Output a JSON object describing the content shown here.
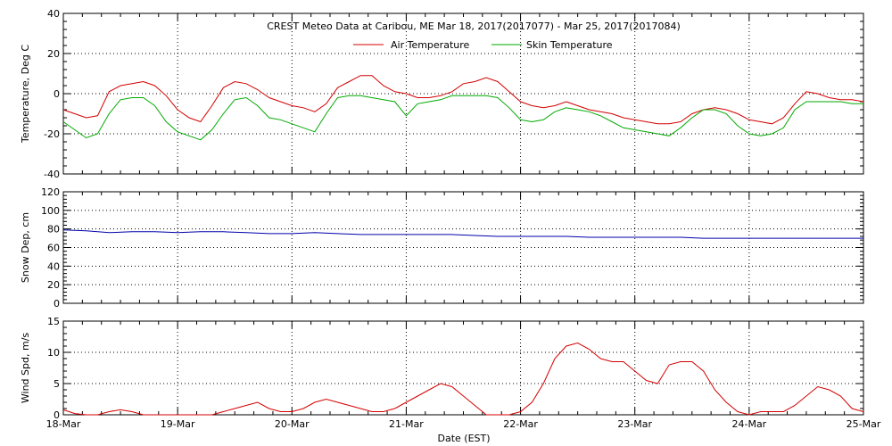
{
  "chart_data": {
    "title": "CREST Meteo Data at Caribou, ME   Mar 18, 2017(2017077) - Mar 25, 2017(2017084)",
    "xlabel": "Date (EST)",
    "x_ticks": [
      "18-Mar",
      "19-Mar",
      "20-Mar",
      "21-Mar",
      "22-Mar",
      "23-Mar",
      "24-Mar",
      "25-Mar"
    ],
    "xlim": [
      0,
      7
    ],
    "x_units": "days since 18-Mar",
    "panels": [
      {
        "type": "line",
        "ylabel": "Temperature, Deg C",
        "ylim": [
          -40,
          40
        ],
        "yticks": [
          -40,
          -20,
          0,
          20,
          40
        ],
        "legend": "top-center",
        "series": [
          {
            "name": "Air Temperature",
            "color": "#d40000",
            "x": [
              0,
              0.1,
              0.2,
              0.3,
              0.4,
              0.5,
              0.6,
              0.7,
              0.8,
              0.9,
              1.0,
              1.1,
              1.2,
              1.3,
              1.4,
              1.5,
              1.6,
              1.7,
              1.8,
              1.9,
              2.0,
              2.1,
              2.2,
              2.3,
              2.4,
              2.5,
              2.6,
              2.7,
              2.8,
              2.9,
              3.0,
              3.1,
              3.2,
              3.3,
              3.4,
              3.5,
              3.6,
              3.7,
              3.8,
              3.9,
              4.0,
              4.1,
              4.2,
              4.3,
              4.4,
              4.5,
              4.6,
              4.7,
              4.8,
              4.9,
              5.0,
              5.1,
              5.2,
              5.3,
              5.4,
              5.5,
              5.6,
              5.7,
              5.8,
              5.9,
              6.0,
              6.1,
              6.2,
              6.3,
              6.4,
              6.5,
              6.6,
              6.7,
              6.8,
              6.9,
              7.0
            ],
            "values": [
              -8,
              -10,
              -12,
              -11,
              1,
              4,
              5,
              6,
              4,
              -1,
              -8,
              -12,
              -14,
              -6,
              3,
              6,
              5,
              2,
              -2,
              -4,
              -6,
              -7,
              -9,
              -5,
              3,
              6,
              9,
              9,
              4,
              1,
              0,
              -2,
              -2,
              -1,
              1,
              5,
              6,
              8,
              6,
              1,
              -4,
              -6,
              -7,
              -6,
              -4,
              -6,
              -8,
              -9,
              -10,
              -12,
              -13,
              -14,
              -15,
              -15,
              -14,
              -10,
              -8,
              -7,
              -8,
              -10,
              -13,
              -14,
              -15,
              -12,
              -5,
              1,
              0,
              -2,
              -3,
              -3,
              -4
            ]
          },
          {
            "name": "Skin Temperature",
            "color": "#00aa00",
            "x": [
              0,
              0.1,
              0.2,
              0.3,
              0.4,
              0.5,
              0.6,
              0.7,
              0.8,
              0.9,
              1.0,
              1.1,
              1.2,
              1.3,
              1.4,
              1.5,
              1.6,
              1.7,
              1.8,
              1.9,
              2.0,
              2.1,
              2.2,
              2.3,
              2.4,
              2.5,
              2.6,
              2.7,
              2.8,
              2.9,
              3.0,
              3.1,
              3.2,
              3.3,
              3.4,
              3.5,
              3.6,
              3.7,
              3.8,
              3.9,
              4.0,
              4.1,
              4.2,
              4.3,
              4.4,
              4.5,
              4.6,
              4.7,
              4.8,
              4.9,
              5.0,
              5.1,
              5.2,
              5.3,
              5.4,
              5.5,
              5.6,
              5.7,
              5.8,
              5.9,
              6.0,
              6.1,
              6.2,
              6.3,
              6.4,
              6.5,
              6.6,
              6.7,
              6.8,
              6.9,
              7.0
            ],
            "values": [
              -14,
              -18,
              -22,
              -20,
              -10,
              -3,
              -2,
              -2,
              -6,
              -14,
              -19,
              -21,
              -23,
              -18,
              -10,
              -3,
              -2,
              -6,
              -12,
              -13,
              -15,
              -17,
              -19,
              -10,
              -2,
              -1,
              -1,
              -2,
              -3,
              -4,
              -11,
              -5,
              -4,
              -3,
              -1,
              -1,
              -1,
              -1,
              -2,
              -7,
              -13,
              -14,
              -13,
              -9,
              -7,
              -8,
              -9,
              -11,
              -14,
              -17,
              -18,
              -19,
              -20,
              -21,
              -17,
              -12,
              -8,
              -8,
              -10,
              -16,
              -20,
              -21,
              -20,
              -17,
              -8,
              -4,
              -4,
              -4,
              -4,
              -5,
              -5
            ]
          }
        ]
      },
      {
        "type": "line",
        "ylabel": "Snow Dep, cm",
        "ylim": [
          0,
          120
        ],
        "yticks": [
          0,
          20,
          40,
          60,
          80,
          100,
          120
        ],
        "series": [
          {
            "name": "",
            "color": "#0000aa",
            "x": [
              0,
              0.2,
              0.4,
              0.6,
              0.8,
              1.0,
              1.2,
              1.4,
              1.6,
              1.8,
              2.0,
              2.2,
              2.4,
              2.6,
              2.8,
              3.0,
              3.2,
              3.4,
              3.6,
              3.8,
              4.0,
              4.2,
              4.4,
              4.6,
              4.8,
              5.0,
              5.2,
              5.4,
              5.6,
              5.8,
              6.0,
              6.2,
              6.4,
              6.6,
              6.8,
              7.0
            ],
            "values": [
              79,
              78,
              76,
              77,
              77,
              76,
              77,
              77,
              76,
              75,
              75,
              76,
              75,
              74,
              74,
              74,
              74,
              74,
              73,
              72,
              72,
              72,
              72,
              71,
              71,
              71,
              71,
              71,
              70,
              70,
              70,
              70,
              70,
              70,
              70,
              70
            ]
          }
        ]
      },
      {
        "type": "line",
        "ylabel": "Wind Spd, m/s",
        "ylim": [
          0,
          15
        ],
        "yticks": [
          0,
          5,
          10,
          15
        ],
        "series": [
          {
            "name": "",
            "color": "#d40000",
            "x": [
              0,
              0.1,
              0.2,
              0.3,
              0.4,
              0.5,
              0.6,
              0.7,
              0.8,
              0.9,
              1.0,
              1.1,
              1.2,
              1.3,
              1.4,
              1.5,
              1.6,
              1.7,
              1.8,
              1.9,
              2.0,
              2.1,
              2.2,
              2.3,
              2.4,
              2.5,
              2.6,
              2.7,
              2.8,
              2.9,
              3.0,
              3.1,
              3.2,
              3.3,
              3.4,
              3.5,
              3.6,
              3.7,
              3.8,
              3.9,
              4.0,
              4.1,
              4.2,
              4.3,
              4.4,
              4.5,
              4.6,
              4.7,
              4.8,
              4.9,
              5.0,
              5.1,
              5.2,
              5.3,
              5.4,
              5.5,
              5.6,
              5.7,
              5.8,
              5.9,
              6.0,
              6.1,
              6.2,
              6.3,
              6.4,
              6.5,
              6.6,
              6.7,
              6.8,
              6.9,
              7.0
            ],
            "values": [
              0.8,
              0.2,
              0,
              0,
              0.5,
              0.8,
              0.5,
              0,
              0,
              0,
              0,
              0,
              0,
              0,
              0.5,
              1,
              1.5,
              2,
              1,
              0.5,
              0.5,
              1,
              2,
              2.5,
              2,
              1.5,
              1,
              0.5,
              0.5,
              1,
              2,
              3,
              4,
              5,
              4.5,
              3,
              1.5,
              0,
              0,
              0,
              0.5,
              2,
              5,
              9,
              11,
              11.5,
              10.5,
              9,
              8.5,
              8.5,
              7,
              5.5,
              5,
              8,
              8.5,
              8.5,
              7,
              4,
              2,
              0.5,
              0,
              0.5,
              0.5,
              0.5,
              1.5,
              3,
              4.5,
              4,
              3,
              1,
              0.5
            ]
          }
        ]
      }
    ]
  }
}
